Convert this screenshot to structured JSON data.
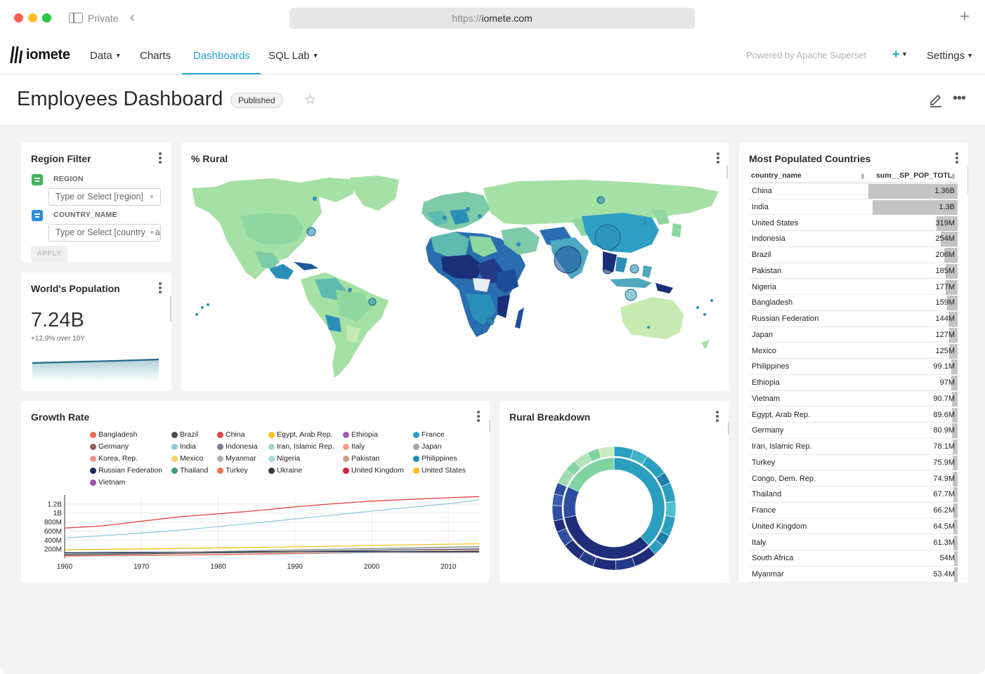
{
  "browser": {
    "private_label": "Private",
    "url_scheme": "https://",
    "url_host": "iomete.com"
  },
  "nav": {
    "logo_text": "iomete",
    "items": [
      {
        "label": "Data",
        "has_caret": true
      },
      {
        "label": "Charts",
        "has_caret": false
      },
      {
        "label": "Dashboards",
        "has_caret": false,
        "active": true
      },
      {
        "label": "SQL Lab",
        "has_caret": true
      }
    ],
    "powered_by": "Powered by Apache Superset",
    "settings_label": "Settings"
  },
  "header": {
    "title": "Employees Dashboard",
    "status_badge": "Published"
  },
  "region_filter": {
    "title": "Region Filter",
    "filters": [
      {
        "label": "REGION",
        "placeholder": "Type or Select [region]",
        "icon_color": "#44b35a"
      },
      {
        "label": "COUNTRY_NAME",
        "placeholder": "Type or Select [country_name]",
        "icon_color": "#2a8fd6"
      }
    ],
    "apply_label": "APPLY"
  },
  "world_population": {
    "title": "World's Population",
    "value": "7.24B",
    "subtitle": "+12.9% over 10Y"
  },
  "rural_map": {
    "title": "% Rural"
  },
  "growth_rate": {
    "title": "Growth Rate",
    "legend": [
      {
        "name": "Bangladesh",
        "color": "#f26b4b"
      },
      {
        "name": "Brazil",
        "color": "#4a4a4a"
      },
      {
        "name": "China",
        "color": "#e04040"
      },
      {
        "name": "Egypt, Arab Rep.",
        "color": "#f5c518"
      },
      {
        "name": "Ethiopia",
        "color": "#a05ab8"
      },
      {
        "name": "France",
        "color": "#2a9fb8"
      },
      {
        "name": "Germany",
        "color": "#8a6060"
      },
      {
        "name": "India",
        "color": "#8ccbd8"
      },
      {
        "name": "Indonesia",
        "color": "#7a8290"
      },
      {
        "name": "Iran, Islamic Rep.",
        "color": "#9fd8c0"
      },
      {
        "name": "Italy",
        "color": "#f0a080"
      },
      {
        "name": "Japan",
        "color": "#a8a8a8"
      },
      {
        "name": "Korea, Rep.",
        "color": "#f09090"
      },
      {
        "name": "Mexico",
        "color": "#f5d060"
      },
      {
        "name": "Myanmar",
        "color": "#b0b0b0"
      },
      {
        "name": "Nigeria",
        "color": "#a8d8e0"
      },
      {
        "name": "Pakistan",
        "color": "#c8a090"
      },
      {
        "name": "Philippines",
        "color": "#1a8fa8"
      },
      {
        "name": "Russian Federation",
        "color": "#1e2d5a"
      },
      {
        "name": "Thailand",
        "color": "#3aa07a"
      },
      {
        "name": "Turkey",
        "color": "#f07050"
      },
      {
        "name": "Ukraine",
        "color": "#3a3a3a"
      },
      {
        "name": "United Kingdom",
        "color": "#d02040"
      },
      {
        "name": "United States",
        "color": "#f5c020"
      },
      {
        "name": "Vietnam",
        "color": "#9a50b0"
      }
    ]
  },
  "rural_breakdown": {
    "title": "Rural Breakdown"
  },
  "populated": {
    "title": "Most Populated Countries",
    "col_name": "country_name",
    "col_value": "sum__SP_POP_TOTL",
    "rows": [
      {
        "name": "China",
        "value": "1.36B",
        "num": 1.36
      },
      {
        "name": "India",
        "value": "1.3B",
        "num": 1.3
      },
      {
        "name": "United States",
        "value": "319M",
        "num": 0.319
      },
      {
        "name": "Indonesia",
        "value": "254M",
        "num": 0.254
      },
      {
        "name": "Brazil",
        "value": "206M",
        "num": 0.206
      },
      {
        "name": "Pakistan",
        "value": "185M",
        "num": 0.185
      },
      {
        "name": "Nigeria",
        "value": "177M",
        "num": 0.177
      },
      {
        "name": "Bangladesh",
        "value": "159M",
        "num": 0.159
      },
      {
        "name": "Russian Federation",
        "value": "144M",
        "num": 0.144
      },
      {
        "name": "Japan",
        "value": "127M",
        "num": 0.127
      },
      {
        "name": "Mexico",
        "value": "125M",
        "num": 0.125
      },
      {
        "name": "Philippines",
        "value": "99.1M",
        "num": 0.0991
      },
      {
        "name": "Ethiopia",
        "value": "97M",
        "num": 0.097
      },
      {
        "name": "Vietnam",
        "value": "90.7M",
        "num": 0.0907
      },
      {
        "name": "Egypt, Arab Rep.",
        "value": "89.6M",
        "num": 0.0896
      },
      {
        "name": "Germany",
        "value": "80.9M",
        "num": 0.0809
      },
      {
        "name": "Iran, Islamic Rep.",
        "value": "78.1M",
        "num": 0.0781
      },
      {
        "name": "Turkey",
        "value": "75.9M",
        "num": 0.0759
      },
      {
        "name": "Congo, Dem. Rep.",
        "value": "74.9M",
        "num": 0.0749
      },
      {
        "name": "Thailand",
        "value": "67.7M",
        "num": 0.0677
      },
      {
        "name": "France",
        "value": "66.2M",
        "num": 0.0662
      },
      {
        "name": "United Kingdom",
        "value": "64.5M",
        "num": 0.0645
      },
      {
        "name": "Italy",
        "value": "61.3M",
        "num": 0.0613
      },
      {
        "name": "South Africa",
        "value": "54M",
        "num": 0.054
      },
      {
        "name": "Myanmar",
        "value": "53.4M",
        "num": 0.0534
      }
    ]
  },
  "chart_data": [
    {
      "type": "line",
      "title": "Growth Rate",
      "xlabel": "",
      "ylabel": "",
      "x": [
        1960,
        1965,
        1970,
        1975,
        1980,
        1985,
        1990,
        1995,
        2000,
        2005,
        2010,
        2014
      ],
      "xticks": [
        1960,
        1970,
        1980,
        1990,
        2000,
        2010
      ],
      "yticks": [
        "200M",
        "400M",
        "600M",
        "800M",
        "1B",
        "1.2B"
      ],
      "ylim": [
        0,
        1400
      ],
      "series": [
        {
          "name": "China",
          "color": "#e04040",
          "values": [
            667,
            715,
            818,
            916,
            981,
            1051,
            1135,
            1205,
            1263,
            1304,
            1338,
            1364
          ]
        },
        {
          "name": "India",
          "color": "#8ccbd8",
          "values": [
            450,
            497,
            555,
            621,
            699,
            784,
            868,
            957,
            1042,
            1127,
            1206,
            1295
          ]
        },
        {
          "name": "United States",
          "color": "#f5c020",
          "values": [
            181,
            194,
            205,
            216,
            227,
            238,
            250,
            266,
            282,
            296,
            309,
            319
          ]
        },
        {
          "name": "Indonesia",
          "color": "#7a8290",
          "values": [
            88,
            100,
            115,
            130,
            147,
            164,
            181,
            196,
            211,
            226,
            242,
            254
          ]
        },
        {
          "name": "Brazil",
          "color": "#4a4a4a",
          "values": [
            72,
            84,
            96,
            108,
            121,
            136,
            150,
            162,
            175,
            186,
            196,
            206
          ]
        },
        {
          "name": "Russian Federation",
          "color": "#1e2d5a",
          "values": [
            120,
            127,
            130,
            134,
            139,
            143,
            148,
            148,
            146,
            143,
            143,
            144
          ]
        },
        {
          "name": "Japan",
          "color": "#a8a8a8",
          "values": [
            93,
            99,
            104,
            112,
            117,
            121,
            124,
            125,
            127,
            128,
            128,
            127
          ]
        },
        {
          "name": "Bangladesh",
          "color": "#f26b4b",
          "values": [
            48,
            56,
            65,
            72,
            81,
            93,
            106,
            118,
            131,
            142,
            151,
            159
          ]
        },
        {
          "name": "Nigeria",
          "color": "#a8d8e0",
          "values": [
            45,
            50,
            56,
            64,
            73,
            84,
            95,
            108,
            122,
            139,
            159,
            177
          ]
        },
        {
          "name": "Pakistan",
          "color": "#c8a090",
          "values": [
            44,
            50,
            58,
            67,
            78,
            92,
            107,
            122,
            138,
            153,
            170,
            185
          ]
        }
      ]
    },
    {
      "type": "pie",
      "title": "Rural Breakdown",
      "rings": [
        {
          "name": "inner",
          "slices": [
            {
              "value": 38,
              "color": "#2a9fc0"
            },
            {
              "value": 34,
              "color": "#1f2d7a"
            },
            {
              "value": 10,
              "color": "#2e4fa0"
            },
            {
              "value": 18,
              "color": "#7fd4a0"
            }
          ]
        },
        {
          "name": "outer",
          "slices": [
            {
              "value": 5,
              "color": "#2a9fc0"
            },
            {
              "value": 4,
              "color": "#3fb4c8"
            },
            {
              "value": 6,
              "color": "#2a9fc0"
            },
            {
              "value": 3,
              "color": "#1a7ea8"
            },
            {
              "value": 5,
              "color": "#2a9fc0"
            },
            {
              "value": 4,
              "color": "#4cbfcc"
            },
            {
              "value": 5,
              "color": "#2a9fc0"
            },
            {
              "value": 3,
              "color": "#1a7ea8"
            },
            {
              "value": 3,
              "color": "#2a9fc0"
            },
            {
              "value": 6,
              "color": "#1f2d7a"
            },
            {
              "value": 5,
              "color": "#263a8a"
            },
            {
              "value": 6,
              "color": "#1f2d7a"
            },
            {
              "value": 4,
              "color": "#263a8a"
            },
            {
              "value": 5,
              "color": "#1f2d7a"
            },
            {
              "value": 4,
              "color": "#2e4fa0"
            },
            {
              "value": 3,
              "color": "#1f2d7a"
            },
            {
              "value": 4,
              "color": "#2e4fa0"
            },
            {
              "value": 3,
              "color": "#3a5fb0"
            },
            {
              "value": 3,
              "color": "#2e4fa0"
            },
            {
              "value": 4,
              "color": "#9fdcae"
            },
            {
              "value": 3,
              "color": "#7fd4a0"
            },
            {
              "value": 4,
              "color": "#b0e3b8"
            },
            {
              "value": 3,
              "color": "#7fd4a0"
            },
            {
              "value": 4,
              "color": "#c8ecc0"
            }
          ]
        }
      ]
    }
  ]
}
